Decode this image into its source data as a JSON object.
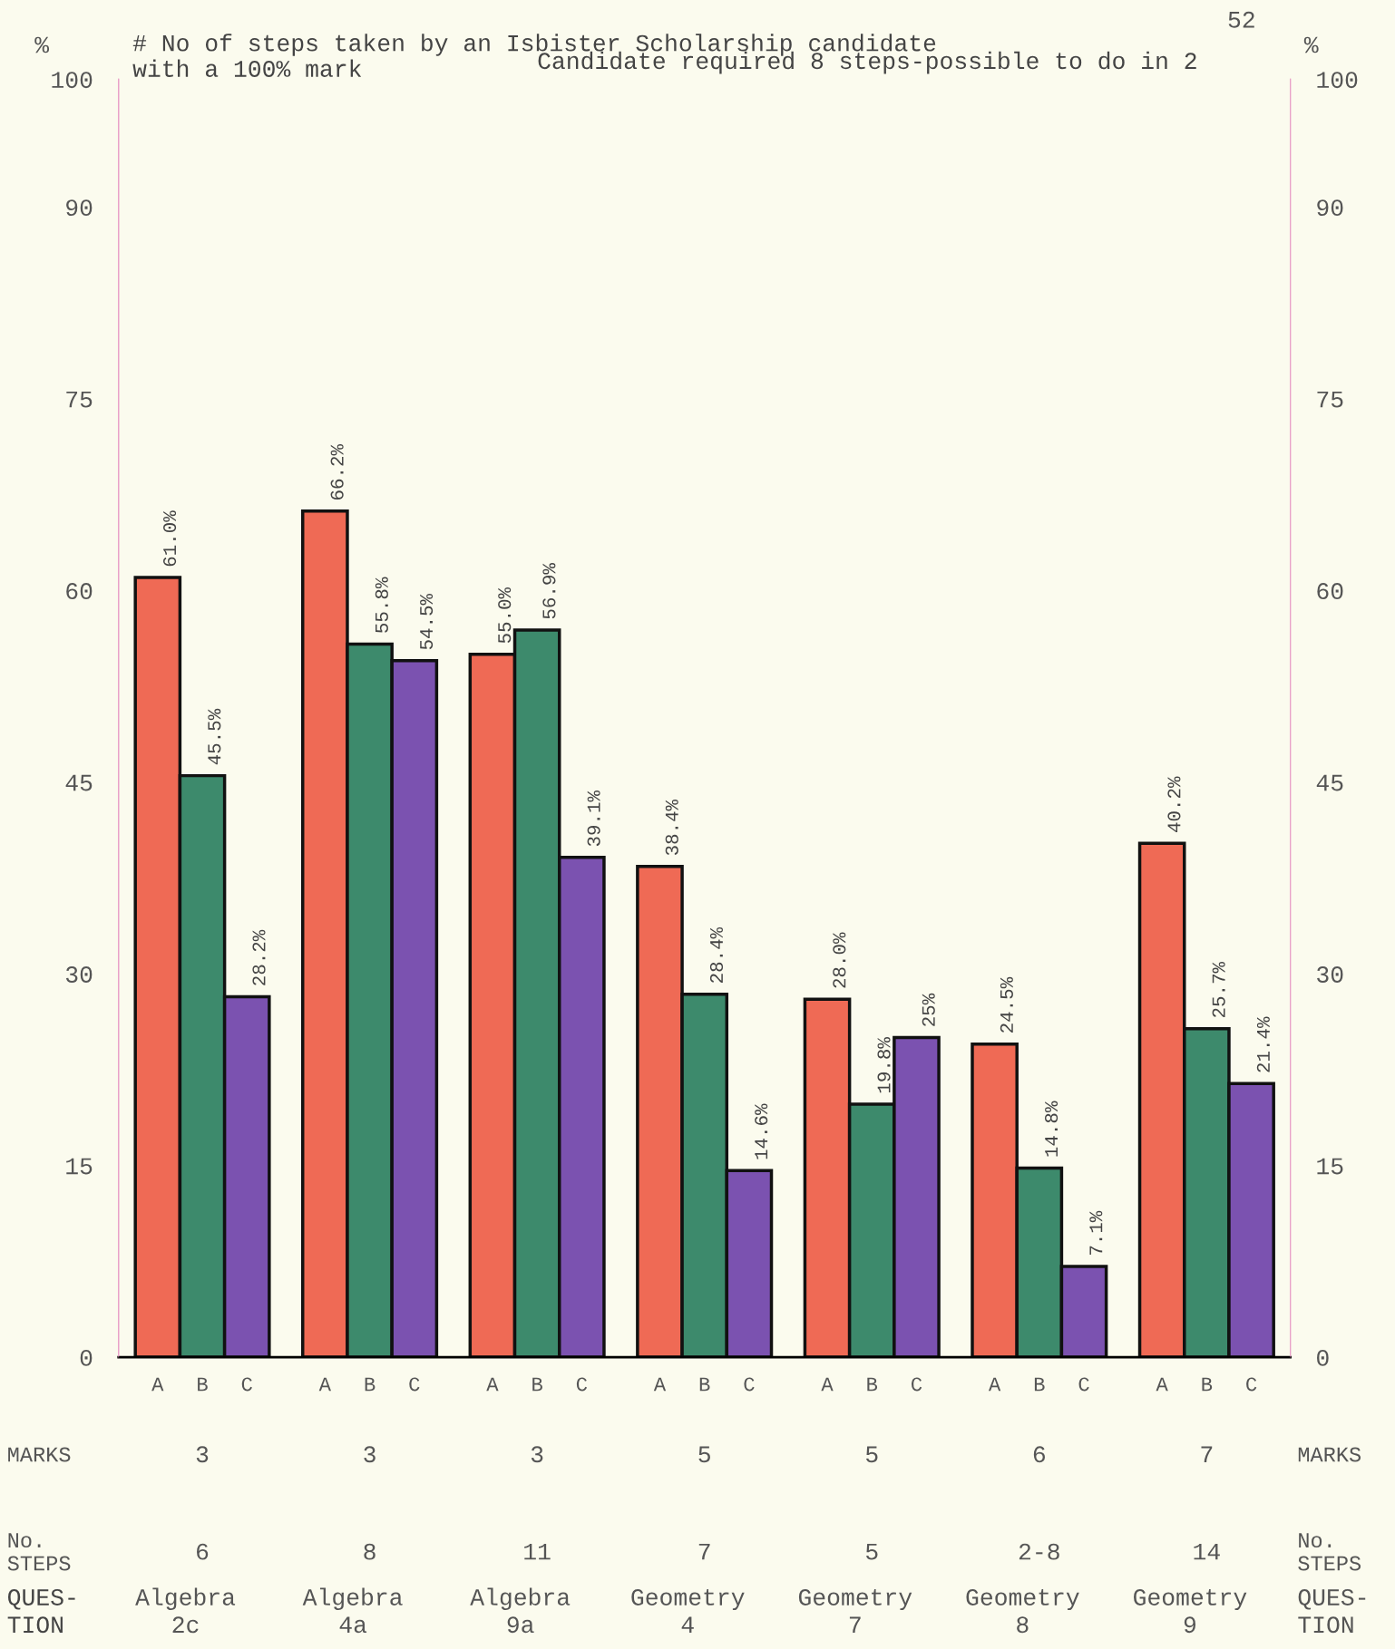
{
  "chart_data": {
    "type": "bar",
    "title": "# No of steps taken by an Isbister Scholarship candidate\nwith a 100% mark",
    "categories": [
      "Algebra\n2c",
      "Algebra\n4a",
      "Algebra\n9a",
      "Geometry\n4",
      "Geometry\n7",
      "Geometry\n8",
      "Geometry\n9"
    ],
    "series": [
      {
        "name": "A",
        "color": "#ef6a55",
        "values": [
          61.0,
          66.2,
          55.0,
          38.4,
          28.0,
          24.5,
          40.2
        ],
        "value_labels": [
          "61.0%",
          "66.2%",
          "55.0%",
          "38.4%",
          "28.0%",
          "24.5%",
          "40.2%"
        ]
      },
      {
        "name": "B",
        "color": "#3d8a6c",
        "values": [
          45.5,
          55.8,
          56.9,
          28.4,
          19.8,
          14.8,
          25.7
        ],
        "value_labels": [
          "45.5%",
          "55.8%",
          "56.9%",
          "28.4%",
          "19.8%",
          "14.8%",
          "25.7%"
        ]
      },
      {
        "name": "C",
        "color": "#7b52b0",
        "values": [
          28.2,
          54.5,
          39.1,
          14.6,
          25,
          7.1,
          21.4
        ],
        "value_labels": [
          "28.2%",
          "54.5%",
          "39.1%",
          "14.6%",
          "25%",
          "7.1%",
          "21.4%"
        ]
      }
    ],
    "ylabel": "%",
    "y2label": "%",
    "xlabel": "QUES-\nTION",
    "ylim": [
      0,
      100
    ],
    "yticks": [
      0,
      15,
      30,
      45,
      60,
      75,
      90,
      100
    ],
    "y2lim": [
      0,
      100
    ],
    "y2ticks": [
      0,
      15,
      30,
      45,
      60,
      75,
      90,
      100
    ],
    "grid": false,
    "legend": false,
    "annotations": [
      "52",
      "Candidate required 8 steps-possible to do in 2",
      "MARKS",
      "3",
      "3",
      "3",
      "5",
      "5",
      "6",
      "7",
      "MARKS",
      "No.\nSTEPS",
      "6",
      "8",
      "11",
      "7",
      "5",
      "2-8",
      "14",
      "No.\nSTEPS",
      "QUES-\nTION"
    ]
  }
}
